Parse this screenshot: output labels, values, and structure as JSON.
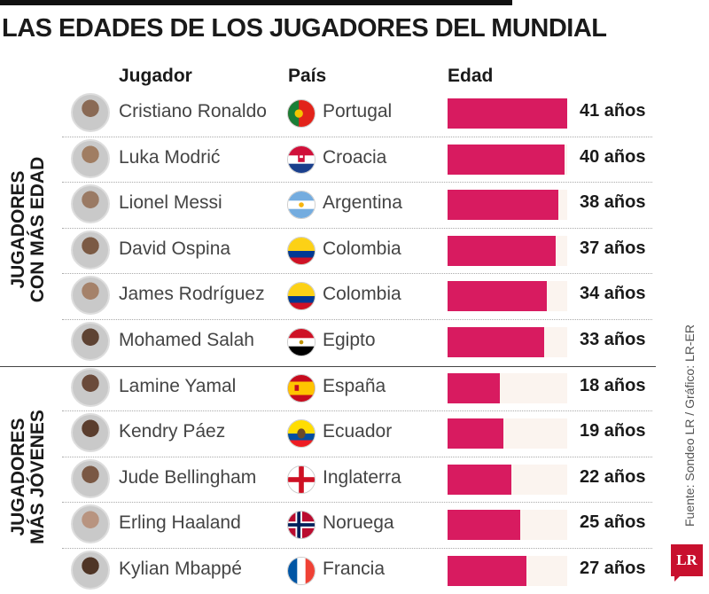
{
  "chart_data": {
    "type": "bar",
    "title": "LAS EDADES DE LOS JUGADORES DEL MUNDIAL",
    "columns": {
      "player": "Jugador",
      "country": "País",
      "age": "Edad"
    },
    "groups": [
      {
        "label_line1": "JUGADORES",
        "label_line2": "CON MÁS EDAD"
      },
      {
        "label_line1": "JUGADORES",
        "label_line2": "MÁS JÓVENES"
      }
    ],
    "xlim": [
      0,
      41
    ],
    "rows": [
      {
        "name": "Cristiano Ronaldo",
        "country": "Portugal",
        "value": 41,
        "label": "41 años",
        "flag": "portugal-flag-icon",
        "group": 0
      },
      {
        "name": "Luka Modrić",
        "country": "Croacia",
        "value": 40,
        "label": "40 años",
        "flag": "croatia-flag-icon",
        "group": 0
      },
      {
        "name": "Lionel Messi",
        "country": "Argentina",
        "value": 38,
        "label": "38 años",
        "flag": "argentina-flag-icon",
        "group": 0
      },
      {
        "name": "David Ospina",
        "country": "Colombia",
        "value": 37,
        "label": "37 años",
        "flag": "colombia-flag-icon",
        "group": 0
      },
      {
        "name": "James Rodríguez",
        "country": "Colombia",
        "value": 34,
        "label": "34 años",
        "flag": "colombia-flag-icon",
        "group": 0
      },
      {
        "name": "Mohamed Salah",
        "country": "Egipto",
        "value": 33,
        "label": "33 años",
        "flag": "egypt-flag-icon",
        "group": 0
      },
      {
        "name": "Lamine Yamal",
        "country": "España",
        "value": 18,
        "label": "18 años",
        "flag": "spain-flag-icon",
        "group": 1
      },
      {
        "name": "Kendry Páez",
        "country": "Ecuador",
        "value": 19,
        "label": "19 años",
        "flag": "ecuador-flag-icon",
        "group": 1
      },
      {
        "name": "Jude Bellingham",
        "country": "Inglaterra",
        "value": 22,
        "label": "22 años",
        "flag": "england-flag-icon",
        "group": 1
      },
      {
        "name": "Erling Haaland",
        "country": "Noruega",
        "value": 25,
        "label": "25 años",
        "flag": "norway-flag-icon",
        "group": 1
      },
      {
        "name": "Kylian Mbappé",
        "country": "Francia",
        "value": 27,
        "label": "27 años",
        "flag": "france-flag-icon",
        "group": 1
      }
    ],
    "bar_color": "#d81b60",
    "track_color": "#fbf4ef"
  },
  "source": "Fuente: Sondeo LR / Gráfico: LR-ER",
  "logo_text": "LR"
}
